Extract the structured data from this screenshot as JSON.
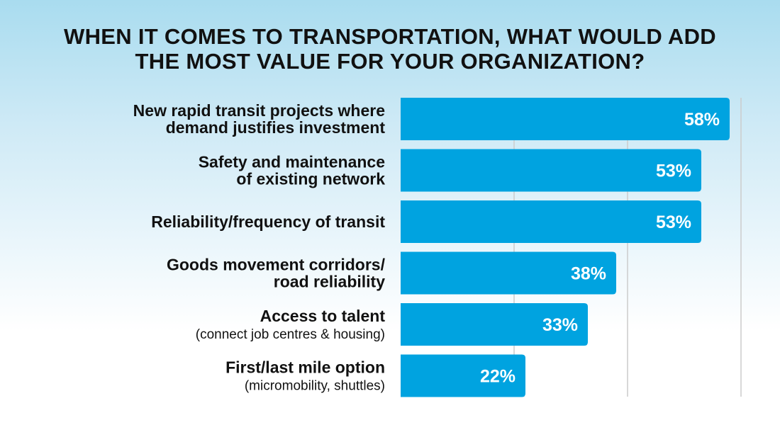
{
  "chart_data": {
    "type": "bar",
    "orientation": "horizontal",
    "title": [
      "WHEN IT COMES TO TRANSPORTATION, WHAT WOULD ADD",
      "THE MOST VALUE FOR YOUR ORGANIZATION?"
    ],
    "categories": [
      {
        "lines": [
          "New rapid transit projects where",
          "demand justifies investment"
        ],
        "sub": ""
      },
      {
        "lines": [
          "Safety and maintenance",
          "of existing network"
        ],
        "sub": ""
      },
      {
        "lines": [
          "Reliability/frequency of transit"
        ],
        "sub": ""
      },
      {
        "lines": [
          "Goods movement corridors/",
          "road reliability"
        ],
        "sub": ""
      },
      {
        "lines": [
          "Access to talent"
        ],
        "sub": "(connect job centres & housing)"
      },
      {
        "lines": [
          "First/last mile option"
        ],
        "sub": "(micromobility, shuttles)"
      }
    ],
    "values": [
      58,
      53,
      53,
      38,
      33,
      22
    ],
    "value_labels": [
      "58%",
      "53%",
      "53%",
      "38%",
      "33%",
      "22%"
    ],
    "xlim": [
      0,
      60
    ],
    "gridlines": [
      20,
      40,
      60
    ],
    "grid": true,
    "legend": "none",
    "bar_color": "#00a3e0",
    "grid_color": "#cccccc"
  }
}
